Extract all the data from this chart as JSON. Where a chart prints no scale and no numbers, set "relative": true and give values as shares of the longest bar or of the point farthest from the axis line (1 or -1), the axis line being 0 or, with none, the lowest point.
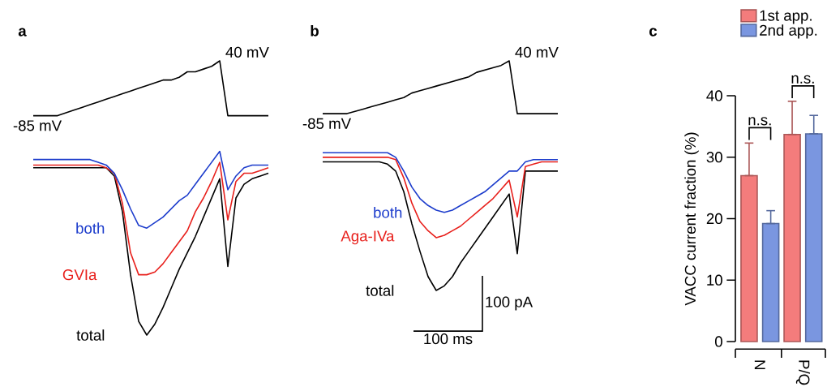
{
  "chart_data": [
    {
      "type": "line",
      "title": "a",
      "relative": true,
      "categories": [
        null,
        null,
        null,
        null,
        null,
        null,
        null,
        null,
        null,
        null,
        null,
        null,
        null,
        null,
        null,
        null,
        null,
        null,
        null,
        null,
        null,
        null,
        null,
        null,
        null,
        null,
        null,
        null,
        null,
        null
      ],
      "series": [
        {
          "color": "#000000",
          "values": [
            0.8,
            0.8,
            0.8,
            0.8,
            0.81,
            0.82,
            0.83,
            0.84,
            0.85,
            0.86,
            0.87,
            0.88,
            0.89,
            0.9,
            0.91,
            0.92,
            0.93,
            0.93,
            0.94,
            0.96,
            0.96,
            0.97,
            0.98,
            1.0,
            0.8,
            0.8,
            0.8,
            0.8,
            0.8,
            0.8
          ]
        },
        {
          "name": "total",
          "color": "#000000",
          "values": [
            0.61,
            0.61,
            0.61,
            0.61,
            0.61,
            0.61,
            0.61,
            0.61,
            0.61,
            0.61,
            0.58,
            0.45,
            0.22,
            0.05,
            0.0,
            0.04,
            0.1,
            0.17,
            0.24,
            0.3,
            0.36,
            0.43,
            0.5,
            0.57,
            0.25,
            0.5,
            0.55,
            0.57,
            0.58,
            0.59
          ]
        },
        {
          "name": "GVIa",
          "color": "#e8201c",
          "values": [
            0.62,
            0.62,
            0.62,
            0.62,
            0.62,
            0.62,
            0.62,
            0.62,
            0.62,
            0.61,
            0.59,
            0.48,
            0.3,
            0.22,
            0.22,
            0.23,
            0.26,
            0.3,
            0.34,
            0.38,
            0.45,
            0.5,
            0.56,
            0.63,
            0.42,
            0.56,
            0.59,
            0.59,
            0.6,
            0.61
          ]
        },
        {
          "name": "both",
          "color": "#1c3ccc",
          "values": [
            0.64,
            0.64,
            0.64,
            0.64,
            0.64,
            0.64,
            0.64,
            0.64,
            0.63,
            0.62,
            0.59,
            0.53,
            0.46,
            0.4,
            0.39,
            0.41,
            0.43,
            0.46,
            0.49,
            0.51,
            0.55,
            0.59,
            0.63,
            0.67,
            0.53,
            0.58,
            0.61,
            0.62,
            0.62,
            0.62
          ]
        }
      ],
      "annotations": [
        "-85 mV",
        "40 mV"
      ]
    },
    {
      "type": "line",
      "title": "b",
      "relative": true,
      "categories": [
        null,
        null,
        null,
        null,
        null,
        null,
        null,
        null,
        null,
        null,
        null,
        null,
        null,
        null,
        null,
        null,
        null,
        null,
        null,
        null,
        null,
        null,
        null,
        null,
        null,
        null,
        null,
        null,
        null,
        null
      ],
      "series": [
        {
          "color": "#000000",
          "values": [
            0.77,
            0.77,
            0.77,
            0.77,
            0.78,
            0.79,
            0.8,
            0.81,
            0.82,
            0.83,
            0.84,
            0.86,
            0.87,
            0.88,
            0.89,
            0.9,
            0.91,
            0.92,
            0.93,
            0.95,
            0.96,
            0.97,
            0.98,
            1.0,
            0.77,
            0.77,
            0.77,
            0.77,
            0.77,
            0.77
          ]
        },
        {
          "name": "total",
          "color": "#000000",
          "values": [
            0.56,
            0.56,
            0.56,
            0.56,
            0.56,
            0.56,
            0.56,
            0.56,
            0.55,
            0.52,
            0.43,
            0.29,
            0.17,
            0.06,
            0.0,
            0.02,
            0.06,
            0.12,
            0.17,
            0.22,
            0.27,
            0.32,
            0.37,
            0.42,
            0.16,
            0.52,
            0.52,
            0.52,
            0.52,
            0.52
          ]
        },
        {
          "name": "Aga-IVa",
          "color": "#e8201c",
          "values": [
            0.58,
            0.58,
            0.58,
            0.58,
            0.58,
            0.58,
            0.58,
            0.58,
            0.58,
            0.57,
            0.49,
            0.38,
            0.3,
            0.26,
            0.23,
            0.24,
            0.26,
            0.28,
            0.31,
            0.34,
            0.37,
            0.4,
            0.44,
            0.48,
            0.32,
            0.54,
            0.55,
            0.56,
            0.56,
            0.56
          ]
        },
        {
          "name": "both",
          "color": "#1c3ccc",
          "values": [
            0.6,
            0.6,
            0.6,
            0.6,
            0.6,
            0.6,
            0.6,
            0.6,
            0.6,
            0.58,
            0.52,
            0.45,
            0.4,
            0.37,
            0.35,
            0.34,
            0.35,
            0.37,
            0.39,
            0.41,
            0.43,
            0.46,
            0.49,
            0.52,
            0.52,
            0.56,
            0.57,
            0.57,
            0.57,
            0.57
          ]
        }
      ],
      "annotations": [
        "-85 mV",
        "40 mV",
        "100 pA",
        "100 ms"
      ]
    },
    {
      "type": "bar",
      "title": "c",
      "ylabel": "VACC current fraction (%)",
      "categories": [
        "N",
        "P/Q"
      ],
      "ylim": [
        0,
        40
      ],
      "yticks": [
        0,
        10,
        20,
        30,
        40
      ],
      "legend": "top",
      "series": [
        {
          "name": "1st app.",
          "color": "#f47c7c",
          "values": [
            27.0,
            33.7
          ],
          "errors": [
            [
              27.0,
              32.3
            ],
            [
              33.7,
              39.1
            ]
          ]
        },
        {
          "name": "2nd app.",
          "color": "#7a96e0",
          "values": [
            19.2,
            33.8
          ],
          "errors": [
            [
              19.2,
              21.3
            ],
            [
              33.8,
              36.8
            ]
          ]
        }
      ],
      "annotations": [
        "n.s.",
        "n.s."
      ]
    }
  ]
}
